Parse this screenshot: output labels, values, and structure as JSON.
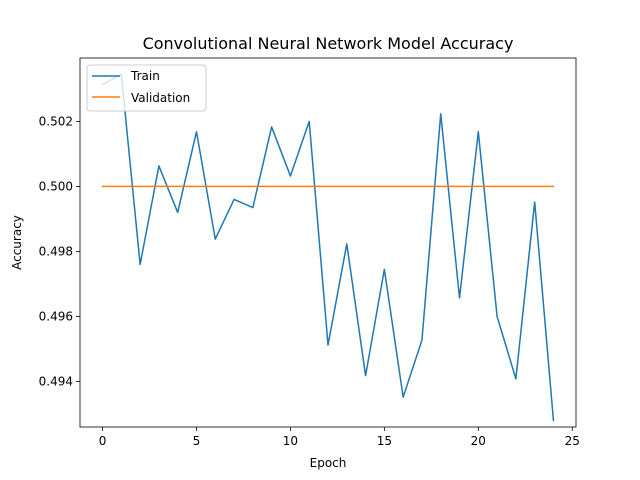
{
  "chart_data": {
    "type": "line",
    "title": "Convolutional Neural Network Model Accuracy",
    "xlabel": "Epoch",
    "ylabel": "Accuracy",
    "xlim": [
      -1.2,
      25.2
    ],
    "ylim": [
      0.4926,
      0.50395
    ],
    "xticks": [
      0,
      5,
      10,
      15,
      20,
      25
    ],
    "xtick_labels": [
      "0",
      "5",
      "10",
      "15",
      "20",
      "25"
    ],
    "yticks": [
      0.494,
      0.496,
      0.498,
      0.5,
      0.502
    ],
    "ytick_labels": [
      "0.494",
      "0.496",
      "0.498",
      "0.500",
      "0.502"
    ],
    "grid": false,
    "legend_position": "top-left",
    "x": [
      0,
      1,
      2,
      3,
      4,
      5,
      6,
      7,
      8,
      9,
      10,
      11,
      12,
      13,
      14,
      15,
      16,
      17,
      18,
      19,
      20,
      21,
      22,
      23,
      24
    ],
    "series": [
      {
        "name": "Train",
        "color": "#1f77b4",
        "values": [
          0.50313,
          0.50345,
          0.4976,
          0.50063,
          0.4992,
          0.50168,
          0.49838,
          0.4996,
          0.49935,
          0.50183,
          0.50032,
          0.502,
          0.49512,
          0.49823,
          0.49418,
          0.49745,
          0.49352,
          0.49527,
          0.50223,
          0.49657,
          0.50168,
          0.496,
          0.49408,
          0.49952,
          0.4928
        ]
      },
      {
        "name": "Validation",
        "color": "#ff7f0e",
        "values": [
          0.5,
          0.5,
          0.5,
          0.5,
          0.5,
          0.5,
          0.5,
          0.5,
          0.5,
          0.5,
          0.5,
          0.5,
          0.5,
          0.5,
          0.5,
          0.5,
          0.5,
          0.5,
          0.5,
          0.5,
          0.5,
          0.5,
          0.5,
          0.5,
          0.5
        ]
      }
    ]
  }
}
